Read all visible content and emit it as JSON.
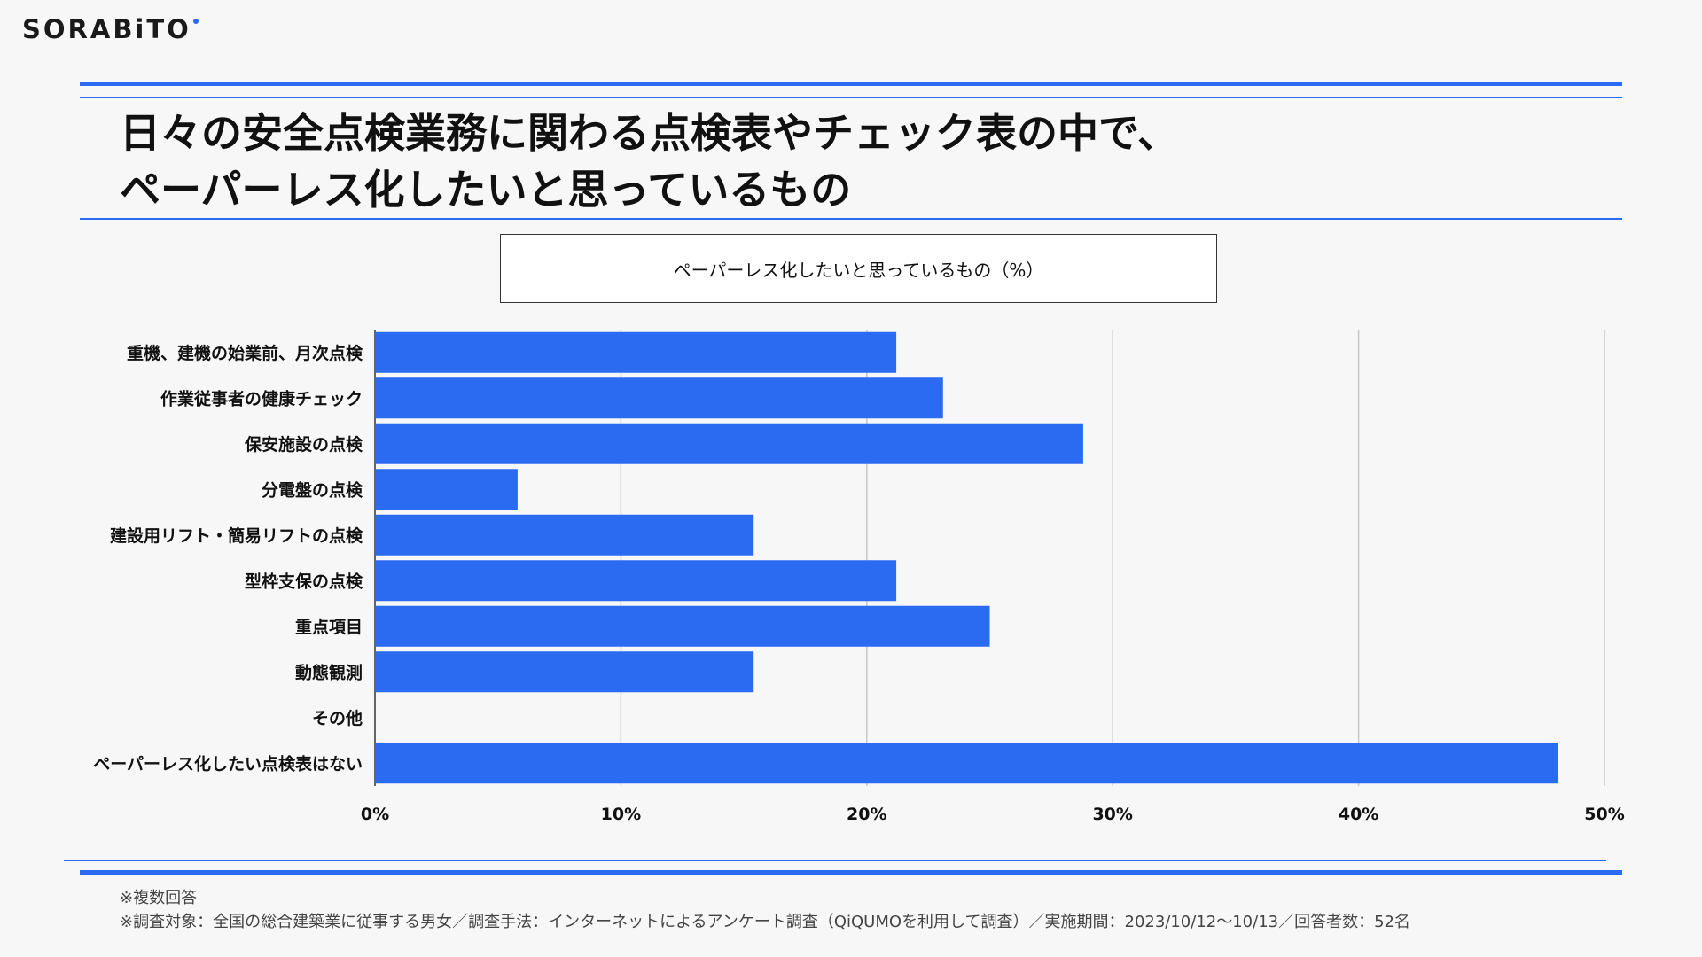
{
  "brand": {
    "logo_text": "SORABiTO",
    "accent_color": "#2a6bf2"
  },
  "header": {
    "title_line1": "日々の安全点検業務に関わる点検表やチェック表の中で、",
    "title_line2": "ペーパーレス化したいと思っているもの"
  },
  "chart_data": {
    "type": "bar",
    "orientation": "horizontal",
    "title": "ペーパーレス化したいと思っているもの（%）",
    "categories": [
      "重機、建機の始業前、月次点検",
      "作業従事者の健康チェック",
      "保安施設の点検",
      "分電盤の点検",
      "建設用リフト・簡易リフトの点検",
      "型枠支保の点検",
      "重点項目",
      "動態観測",
      "その他",
      "ペーパーレス化したい点検表はない"
    ],
    "values": [
      21.2,
      23.1,
      28.8,
      5.8,
      15.4,
      21.2,
      25.0,
      15.4,
      0,
      48.1
    ],
    "xlim": [
      0,
      50
    ],
    "x_ticks": [
      "0%",
      "10%",
      "20%",
      "30%",
      "40%",
      "50%"
    ],
    "grid": true,
    "bar_color": "#2a6bf2"
  },
  "footer": {
    "note1": "※複数回答",
    "note2": "※調査対象：全国の総合建築業に従事する男女／調査手法：インターネットによるアンケート調査（QiQUMOを利用して調査）／実施期間：2023/10/12〜10/13／回答者数：52名"
  }
}
